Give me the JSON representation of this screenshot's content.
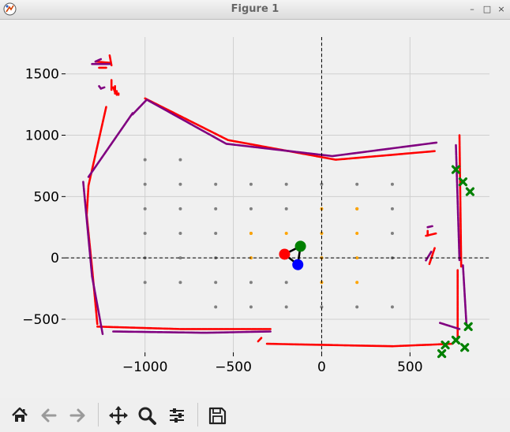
{
  "window": {
    "title": "Figure 1",
    "controls": {
      "minimize": "–",
      "maximize": "□",
      "close": "×"
    }
  },
  "toolbar": {
    "buttons": [
      {
        "name": "home",
        "icon": "home-icon"
      },
      {
        "name": "back",
        "icon": "arrow-left-icon"
      },
      {
        "name": "forward",
        "icon": "arrow-right-icon"
      },
      {
        "name": "pan",
        "icon": "move-icon"
      },
      {
        "name": "zoom",
        "icon": "magnifier-icon"
      },
      {
        "name": "configure",
        "icon": "sliders-icon"
      },
      {
        "name": "save",
        "icon": "floppy-disk-icon"
      }
    ]
  },
  "chart_data": {
    "type": "scatter",
    "title": "",
    "xlabel": "",
    "ylabel": "",
    "xlim": [
      -1450,
      950
    ],
    "ylim": [
      -770,
      1800
    ],
    "grid": true,
    "xticks": [
      -1000,
      -500,
      0,
      500
    ],
    "yticks": [
      -500,
      0,
      500,
      1000,
      1500
    ],
    "xtick_labels": [
      "−1000",
      "−500",
      "0",
      "500"
    ],
    "ytick_labels": [
      "−500",
      "0",
      "500",
      "1000",
      "1500"
    ],
    "reference_lines": {
      "x": 0,
      "y": 0,
      "style": "dashed",
      "color": "#000000"
    },
    "series": [
      {
        "style": "path",
        "color": "#ff0000",
        "segments": [
          [
            [
              -1220,
              1230
            ],
            [
              -1320,
              590
            ],
            [
              -1330,
              350
            ],
            [
              -1300,
              -80
            ],
            [
              -1270,
              -540
            ]
          ],
          [
            [
              -1270,
              -560
            ],
            [
              -800,
              -580
            ],
            [
              -290,
              -580
            ]
          ],
          [
            [
              -310,
              -700
            ],
            [
              400,
              -720
            ],
            [
              740,
              -700
            ]
          ],
          [
            [
              770,
              -660
            ],
            [
              770,
              -100
            ]
          ],
          [
            [
              790,
              -70
            ],
            [
              780,
              1000
            ]
          ],
          [
            [
              -1000,
              1300
            ],
            [
              -530,
              960
            ],
            [
              80,
              800
            ],
            [
              640,
              870
            ]
          ],
          [
            [
              -1280,
              1600
            ],
            [
              -1200,
              1590
            ]
          ],
          [
            [
              -1260,
              1550
            ],
            [
              -1220,
              1550
            ]
          ],
          [
            [
              -1200,
              1650
            ],
            [
              -1190,
              1570
            ]
          ],
          [
            [
              -1190,
              1450
            ],
            [
              -1190,
              1370
            ]
          ],
          [
            [
              -1180,
              1390
            ],
            [
              -1170,
              1350
            ]
          ],
          [
            [
              -1170,
              1340
            ],
            [
              -1170,
              1400
            ]
          ],
          [
            [
              -1160,
              1360
            ],
            [
              -1160,
              1330
            ]
          ],
          [
            [
              -1150,
              1340
            ],
            [
              -1150,
              1330
            ]
          ],
          [
            [
              600,
              220
            ],
            [
              600,
              180
            ]
          ],
          [
            [
              590,
              180
            ],
            [
              650,
              200
            ]
          ],
          [
            [
              640,
              80
            ],
            [
              610,
              -50
            ]
          ],
          [
            [
              -360,
              -680
            ],
            [
              -340,
              -650
            ]
          ]
        ]
      },
      {
        "style": "path",
        "color": "#800080",
        "segments": [
          [
            [
              -1350,
              620
            ],
            [
              -1300,
              -150
            ],
            [
              -1240,
              -620
            ]
          ],
          [
            [
              -1180,
              -600
            ],
            [
              -660,
              -610
            ],
            [
              -290,
              -600
            ]
          ],
          [
            [
              -1320,
              660
            ],
            [
              -1070,
              1180
            ]
          ],
          [
            [
              -1070,
              1170
            ],
            [
              -990,
              1290
            ],
            [
              -540,
              930
            ],
            [
              60,
              830
            ],
            [
              650,
              940
            ]
          ],
          [
            [
              760,
              920
            ],
            [
              780,
              -20
            ]
          ],
          [
            [
              800,
              -60
            ],
            [
              820,
              -550
            ]
          ],
          [
            [
              -1300,
              1580
            ],
            [
              -1200,
              1580
            ]
          ],
          [
            [
              -1280,
              1600
            ],
            [
              -1250,
              1620
            ]
          ],
          [
            [
              -1260,
              1400
            ],
            [
              -1250,
              1380
            ]
          ],
          [
            [
              -1250,
              1380
            ],
            [
              -1230,
              1390
            ]
          ],
          [
            [
              600,
              250
            ],
            [
              630,
              260
            ]
          ],
          [
            [
              620,
              50
            ],
            [
              590,
              -20
            ]
          ],
          [
            [
              670,
              -530
            ],
            [
              780,
              -580
            ]
          ]
        ]
      },
      {
        "style": "marker",
        "marker": "x",
        "color": "#008000",
        "points": [
          [
            760,
            720
          ],
          [
            800,
            620
          ],
          [
            840,
            540
          ],
          [
            830,
            -560
          ],
          [
            760,
            -670
          ],
          [
            810,
            -730
          ],
          [
            700,
            -710
          ],
          [
            680,
            -780
          ]
        ]
      },
      {
        "style": "marker",
        "marker": "dot",
        "color": "#808080",
        "points": [
          [
            -1000,
            800
          ],
          [
            -800,
            800
          ],
          [
            -1000,
            600
          ],
          [
            -800,
            600
          ],
          [
            -600,
            600
          ],
          [
            -400,
            600
          ],
          [
            -200,
            600
          ],
          [
            0,
            600
          ],
          [
            200,
            600
          ],
          [
            400,
            600
          ],
          [
            -1000,
            400
          ],
          [
            -800,
            400
          ],
          [
            -600,
            400
          ],
          [
            -400,
            400
          ],
          [
            -200,
            400
          ],
          [
            200,
            400
          ],
          [
            400,
            400
          ],
          [
            -1000,
            200
          ],
          [
            -800,
            200
          ],
          [
            -600,
            200
          ],
          [
            -400,
            200
          ],
          [
            400,
            200
          ],
          [
            -1000,
            0
          ],
          [
            -800,
            0
          ],
          [
            -600,
            0
          ],
          [
            -400,
            0
          ],
          [
            -200,
            0
          ],
          [
            0,
            0
          ],
          [
            400,
            0
          ],
          [
            -1000,
            -200
          ],
          [
            -800,
            -200
          ],
          [
            -600,
            -200
          ],
          [
            -400,
            -200
          ],
          [
            -200,
            -200
          ],
          [
            -600,
            -400
          ],
          [
            -400,
            -400
          ],
          [
            -200,
            -400
          ],
          [
            0,
            -400
          ],
          [
            200,
            -400
          ],
          [
            400,
            -400
          ]
        ]
      },
      {
        "style": "marker",
        "marker": "dot",
        "color": "#ffa500",
        "points": [
          [
            0,
            400
          ],
          [
            200,
            400
          ],
          [
            -400,
            200
          ],
          [
            -200,
            200
          ],
          [
            0,
            200
          ],
          [
            200,
            200
          ],
          [
            -400,
            0
          ],
          [
            0,
            0
          ],
          [
            200,
            0
          ],
          [
            0,
            -200
          ],
          [
            200,
            -200
          ]
        ]
      },
      {
        "style": "pose",
        "color": "#000000",
        "points": [
          [
            -210,
            30
          ],
          [
            -120,
            95
          ],
          [
            -135,
            -55
          ]
        ],
        "vertex_colors": [
          "#ff0000",
          "#008000",
          "#0000ff"
        ]
      }
    ]
  }
}
